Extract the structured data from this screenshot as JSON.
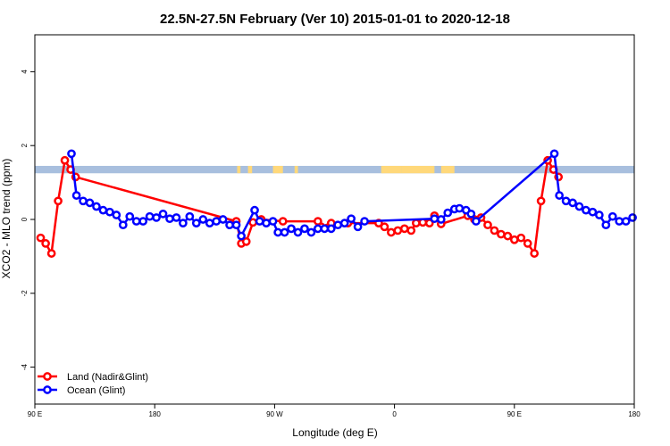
{
  "chart_data": {
    "type": "line",
    "title": "22.5N-27.5N February (Ver 10)   2015-01-01 to 2020-12-18",
    "xlabel": "Longitude (deg E)",
    "ylabel": "XCO2 - MLO trend (ppm)",
    "xlim": [
      90,
      450
    ],
    "ylim": [
      -5,
      5
    ],
    "x_ticks": [
      {
        "value": 90,
        "label": "90 E"
      },
      {
        "value": 162,
        "label": "180"
      },
      {
        "value": 234,
        "label": "90 W"
      },
      {
        "value": 306,
        "label": "0"
      },
      {
        "value": 378,
        "label": "90 E"
      },
      {
        "value": 450,
        "label": "180"
      }
    ],
    "y_ticks": [
      -4,
      -2,
      0,
      2,
      4
    ],
    "grid": false,
    "legend_position": "bottom-left",
    "land_band": {
      "y_range": [
        1.25,
        1.45
      ],
      "ocean_color": "#a8bfde",
      "land_color": "#ffd87a",
      "land_segments": [
        [
          211.5,
          213.5
        ],
        [
          218,
          220.5
        ],
        [
          233,
          239
        ],
        [
          246,
          248
        ],
        [
          298,
          310
        ],
        [
          310,
          330
        ],
        [
          334,
          342
        ]
      ]
    },
    "series": [
      {
        "name": "Land (Nadir&Glint)",
        "color": "#ff0000",
        "points": [
          [
            93.5,
            -0.5
          ],
          [
            96.5,
            -0.65
          ],
          [
            100,
            -0.92
          ],
          [
            104,
            0.5
          ],
          [
            108,
            1.6
          ],
          [
            111.5,
            1.35
          ],
          [
            114.5,
            1.15
          ],
          [
            211,
            -0.05
          ],
          [
            214,
            -0.65
          ],
          [
            217,
            -0.6
          ],
          [
            221,
            -0.08
          ],
          [
            226,
            0.0
          ],
          [
            239,
            -0.05
          ],
          [
            260,
            -0.05
          ],
          [
            262,
            -0.2
          ],
          [
            268,
            -0.1
          ],
          [
            278,
            -0.1
          ],
          [
            296.5,
            -0.1
          ],
          [
            300,
            -0.2
          ],
          [
            304,
            -0.35
          ],
          [
            308,
            -0.3
          ],
          [
            312,
            -0.25
          ],
          [
            316,
            -0.3
          ],
          [
            319,
            -0.1
          ],
          [
            323,
            -0.08
          ],
          [
            327,
            -0.1
          ],
          [
            330,
            0.1
          ],
          [
            334,
            -0.12
          ],
          [
            350,
            0.1
          ],
          [
            354,
            0.0
          ],
          [
            358,
            0.05
          ],
          [
            362,
            -0.15
          ],
          [
            366,
            -0.3
          ],
          [
            370,
            -0.4
          ],
          [
            374,
            -0.45
          ],
          [
            378,
            -0.55
          ],
          [
            382,
            -0.5
          ],
          [
            386,
            -0.65
          ],
          [
            390,
            -0.92
          ],
          [
            394,
            0.5
          ],
          [
            398,
            1.6
          ],
          [
            401.5,
            1.35
          ],
          [
            404.5,
            1.15
          ]
        ]
      },
      {
        "name": "Ocean (Glint)",
        "color": "#0000ff",
        "points": [
          [
            112,
            1.78
          ],
          [
            115,
            0.65
          ],
          [
            119,
            0.5
          ],
          [
            123,
            0.45
          ],
          [
            127,
            0.35
          ],
          [
            131,
            0.25
          ],
          [
            135,
            0.2
          ],
          [
            139,
            0.12
          ],
          [
            143,
            -0.15
          ],
          [
            147,
            0.08
          ],
          [
            151,
            -0.05
          ],
          [
            155,
            -0.05
          ],
          [
            159,
            0.08
          ],
          [
            163,
            0.05
          ],
          [
            167,
            0.15
          ],
          [
            171,
            0.02
          ],
          [
            175,
            0.05
          ],
          [
            179,
            -0.1
          ],
          [
            183,
            0.08
          ],
          [
            187,
            -0.1
          ],
          [
            191,
            0.0
          ],
          [
            195,
            -0.1
          ],
          [
            199,
            -0.05
          ],
          [
            203,
            0.0
          ],
          [
            207,
            -0.15
          ],
          [
            211,
            -0.15
          ],
          [
            214,
            -0.45
          ],
          [
            222,
            0.25
          ],
          [
            225,
            -0.05
          ],
          [
            229,
            -0.1
          ],
          [
            233,
            -0.05
          ],
          [
            236,
            -0.35
          ],
          [
            240,
            -0.35
          ],
          [
            244,
            -0.25
          ],
          [
            248,
            -0.35
          ],
          [
            252,
            -0.25
          ],
          [
            256,
            -0.35
          ],
          [
            260,
            -0.25
          ],
          [
            264,
            -0.25
          ],
          [
            268,
            -0.25
          ],
          [
            272,
            -0.15
          ],
          [
            276,
            -0.1
          ],
          [
            280,
            0.02
          ],
          [
            284,
            -0.2
          ],
          [
            288,
            -0.05
          ],
          [
            330,
            0.02
          ],
          [
            334,
            0.0
          ],
          [
            338,
            0.18
          ],
          [
            342,
            0.28
          ],
          [
            345,
            0.3
          ],
          [
            349,
            0.25
          ],
          [
            352,
            0.15
          ],
          [
            355,
            -0.05
          ],
          [
            402,
            1.78
          ],
          [
            405,
            0.65
          ],
          [
            409,
            0.5
          ],
          [
            413,
            0.45
          ],
          [
            417,
            0.35
          ],
          [
            421,
            0.25
          ],
          [
            425,
            0.2
          ],
          [
            429,
            0.12
          ],
          [
            433,
            -0.15
          ],
          [
            437,
            0.08
          ],
          [
            441,
            -0.05
          ],
          [
            445,
            -0.05
          ],
          [
            449,
            0.05
          ]
        ]
      }
    ]
  }
}
